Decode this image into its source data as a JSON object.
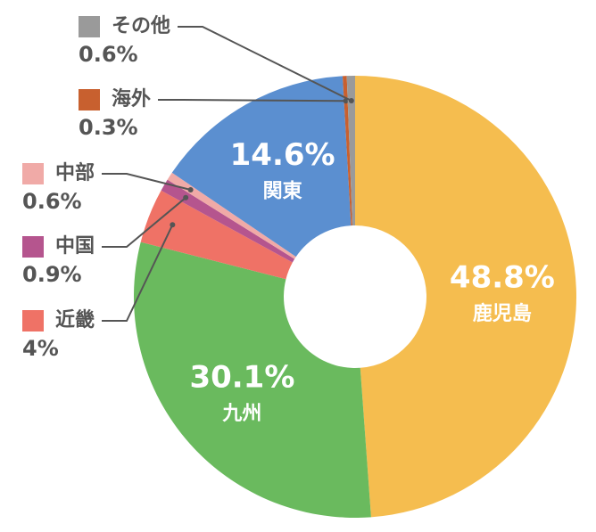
{
  "chart_data": {
    "type": "donut",
    "categories": [
      "鹿児島",
      "九州",
      "近畿",
      "中国",
      "中部",
      "関東",
      "海外",
      "その他"
    ],
    "values": [
      48.8,
      30.1,
      4,
      0.9,
      0.6,
      14.6,
      0.3,
      0.6
    ],
    "value_labels": [
      "48.8%",
      "30.1%",
      "4%",
      "0.9%",
      "0.6%",
      "14.6%",
      "0.3%",
      "0.6%"
    ],
    "colors": [
      "#f5bd4f",
      "#6aba5e",
      "#ef7266",
      "#b5558e",
      "#f0aaa7",
      "#5b8fd0",
      "#c8602f",
      "#9a9a9a"
    ]
  }
}
